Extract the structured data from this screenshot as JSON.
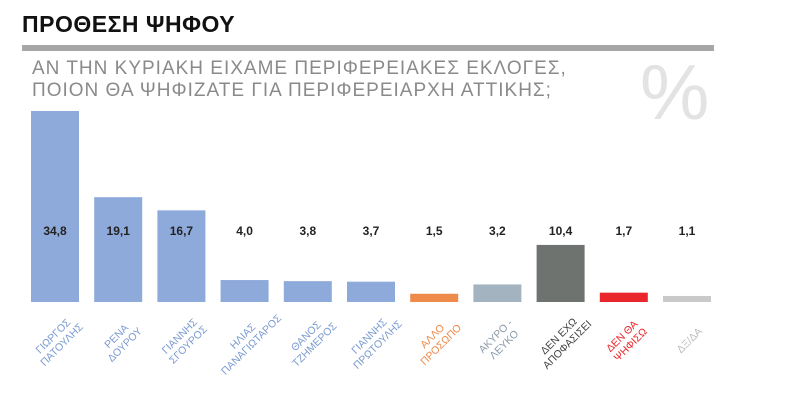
{
  "header": {
    "title": "ΠΡΟΘΕΣΗ ΨΗΦΟΥ",
    "question_line1": "ΑΝ ΤΗΝ ΚΥΡΙΑΚΗ ΕΙΧΑΜΕ ΠΕΡΙΦΕΡΕΙΑΚΕΣ ΕΚΛΟΓΕΣ,",
    "question_line2": "ΠΟΙΟΝ ΘΑ ΨΗΦΙΖΑΤΕ ΓΙΑ ΠΕΡΙΦΕΡΕΙΑΡΧΗ ΑΤΤΙΚΗΣ;",
    "percent_symbol": "%"
  },
  "chart_data": {
    "type": "bar",
    "title": "ΠΡΟΘΕΣΗ ΨΗΦΟΥ",
    "ylim": [
      0,
      34.8
    ],
    "grid": false,
    "categories": [
      [
        "ΓΙΩΡΓΟΣ",
        "ΠΑΤΟΥΛΗΣ"
      ],
      [
        "ΡΕΝΑ",
        "ΔΟΥΡΟΥ"
      ],
      [
        "ΓΙΑΝΝΗΣ",
        "ΣΓΟΥΡΟΣ"
      ],
      [
        "ΗΛΙΑΣ",
        "ΠΑΝΑΓΙΩΤΑΡΟΣ"
      ],
      [
        "ΘΑΝΟΣ",
        "ΤΖΗΜΕΡΟΣ"
      ],
      [
        "ΓΙΑΝΝΗΣ",
        "ΠΡΩΤΟΥΛΗΣ"
      ],
      [
        "ΑΛΛΟ",
        "ΠΡΟΣΩΠΟ"
      ],
      [
        "ΑΚΥΡΟ -",
        "ΛΕΥΚΟ"
      ],
      [
        "ΔΕΝ ΕΧΩ",
        "ΑΠΟΦΑΣΙΣΕΙ"
      ],
      [
        "ΔΕΝ ΘΑ",
        "ΨΗΦΙΣΩ"
      ],
      [
        "ΔΞ/ΔΑ"
      ]
    ],
    "values": [
      34.8,
      19.1,
      16.7,
      4.0,
      3.8,
      3.7,
      1.5,
      3.2,
      10.4,
      1.7,
      1.1
    ],
    "value_labels": [
      "34,8",
      "19,1",
      "16,7",
      "4,0",
      "3,8",
      "3,7",
      "1,5",
      "3,2",
      "10,4",
      "1,7",
      "1,1"
    ],
    "colors": [
      "#8eaadb",
      "#8eaadb",
      "#8eaadb",
      "#8eaadb",
      "#8eaadb",
      "#8eaadb",
      "#ee8a4a",
      "#a3b3c0",
      "#6f736f",
      "#e8262b",
      "#c9c9c9"
    ],
    "label_colors": [
      "#7b9bd1",
      "#7b9bd1",
      "#7b9bd1",
      "#7b9bd1",
      "#7b9bd1",
      "#7b9bd1",
      "#ee8a4a",
      "#8a9aa8",
      "#444444",
      "#e8262b",
      "#bbbbbb"
    ]
  }
}
